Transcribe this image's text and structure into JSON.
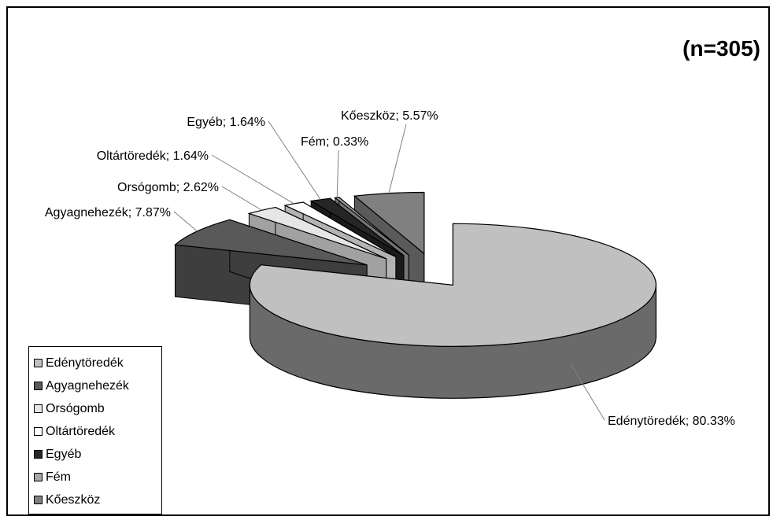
{
  "count_label": "(n=305)",
  "chart_data": {
    "type": "pie",
    "title": "",
    "categories": [
      "Edénytöredék",
      "Agyagnehezék",
      "Orsógomb",
      "Oltártöredék",
      "Egyéb",
      "Fém",
      "Kőeszköz"
    ],
    "values": [
      80.33,
      7.87,
      2.62,
      1.64,
      1.64,
      0.33,
      5.57
    ],
    "data_labels": [
      "Edénytöredék; 80.33%",
      "Agyagnehezék; 7.87%",
      "Orsógomb; 2.62%",
      "Oltártöredék; 1.64%",
      "Egyéb; 1.64%",
      "Fém; 0.33%",
      "Kőeszköz; 5.57%"
    ],
    "colors": [
      "#c0c0c0",
      "#595959",
      "#e6e6e6",
      "#ffffff",
      "#262626",
      "#a6a6a6",
      "#808080"
    ],
    "legend_position": "bottom-left",
    "style": "3d-exploded"
  }
}
